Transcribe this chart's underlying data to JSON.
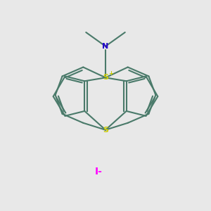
{
  "background_color": "#e8e8e8",
  "bond_color": "#4a7a6a",
  "S_top_color": "#cccc00",
  "S_bottom_color": "#cccc00",
  "N_color": "#2200cc",
  "iodide_color": "#ff00ff",
  "S_top_label": "S",
  "S_top_plus": "+",
  "S_bottom_label": "S",
  "N_label": "N",
  "iodide_label": "I-",
  "figsize": [
    3.0,
    3.0
  ],
  "dpi": 100
}
